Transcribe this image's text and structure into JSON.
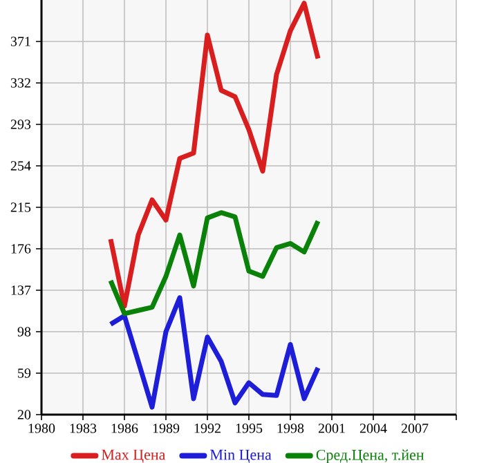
{
  "chart_data": {
    "type": "line",
    "x": [
      1985,
      1986,
      1987,
      1988,
      1989,
      1990,
      1991,
      1992,
      1993,
      1994,
      1995,
      1996,
      1997,
      1998,
      1999,
      2000
    ],
    "series": [
      {
        "name": "Max Цена",
        "color": "#d81e1e",
        "values": [
          185,
          122,
          189,
          222,
          203,
          261,
          266,
          377,
          325,
          319,
          288,
          249,
          340,
          381,
          407,
          355
        ]
      },
      {
        "name": "Min Цена",
        "color": "#1e1ed8",
        "values": [
          105,
          113,
          70,
          27,
          98,
          130,
          35,
          93,
          70,
          31,
          50,
          39,
          38,
          86,
          35,
          64
        ]
      },
      {
        "name": "Сред.Цена, т.йен",
        "color": "#0a820a",
        "values": [
          146,
          115,
          118,
          121,
          150,
          189,
          141,
          205,
          210,
          206,
          155,
          150,
          177,
          181,
          173,
          202
        ]
      }
    ],
    "xlim": [
      1980,
      2010
    ],
    "xticks": [
      1980,
      1983,
      1986,
      1989,
      1992,
      1995,
      1998,
      2001,
      2004,
      2007,
      {
        "value": 2010,
        "label": null
      }
    ],
    "ylim": [
      20,
      410
    ],
    "yticks": [
      20,
      59,
      98,
      137,
      176,
      215,
      254,
      293,
      332,
      371
    ],
    "grid": true,
    "legend": "bottom",
    "marker": "none",
    "line_style": "solid"
  }
}
